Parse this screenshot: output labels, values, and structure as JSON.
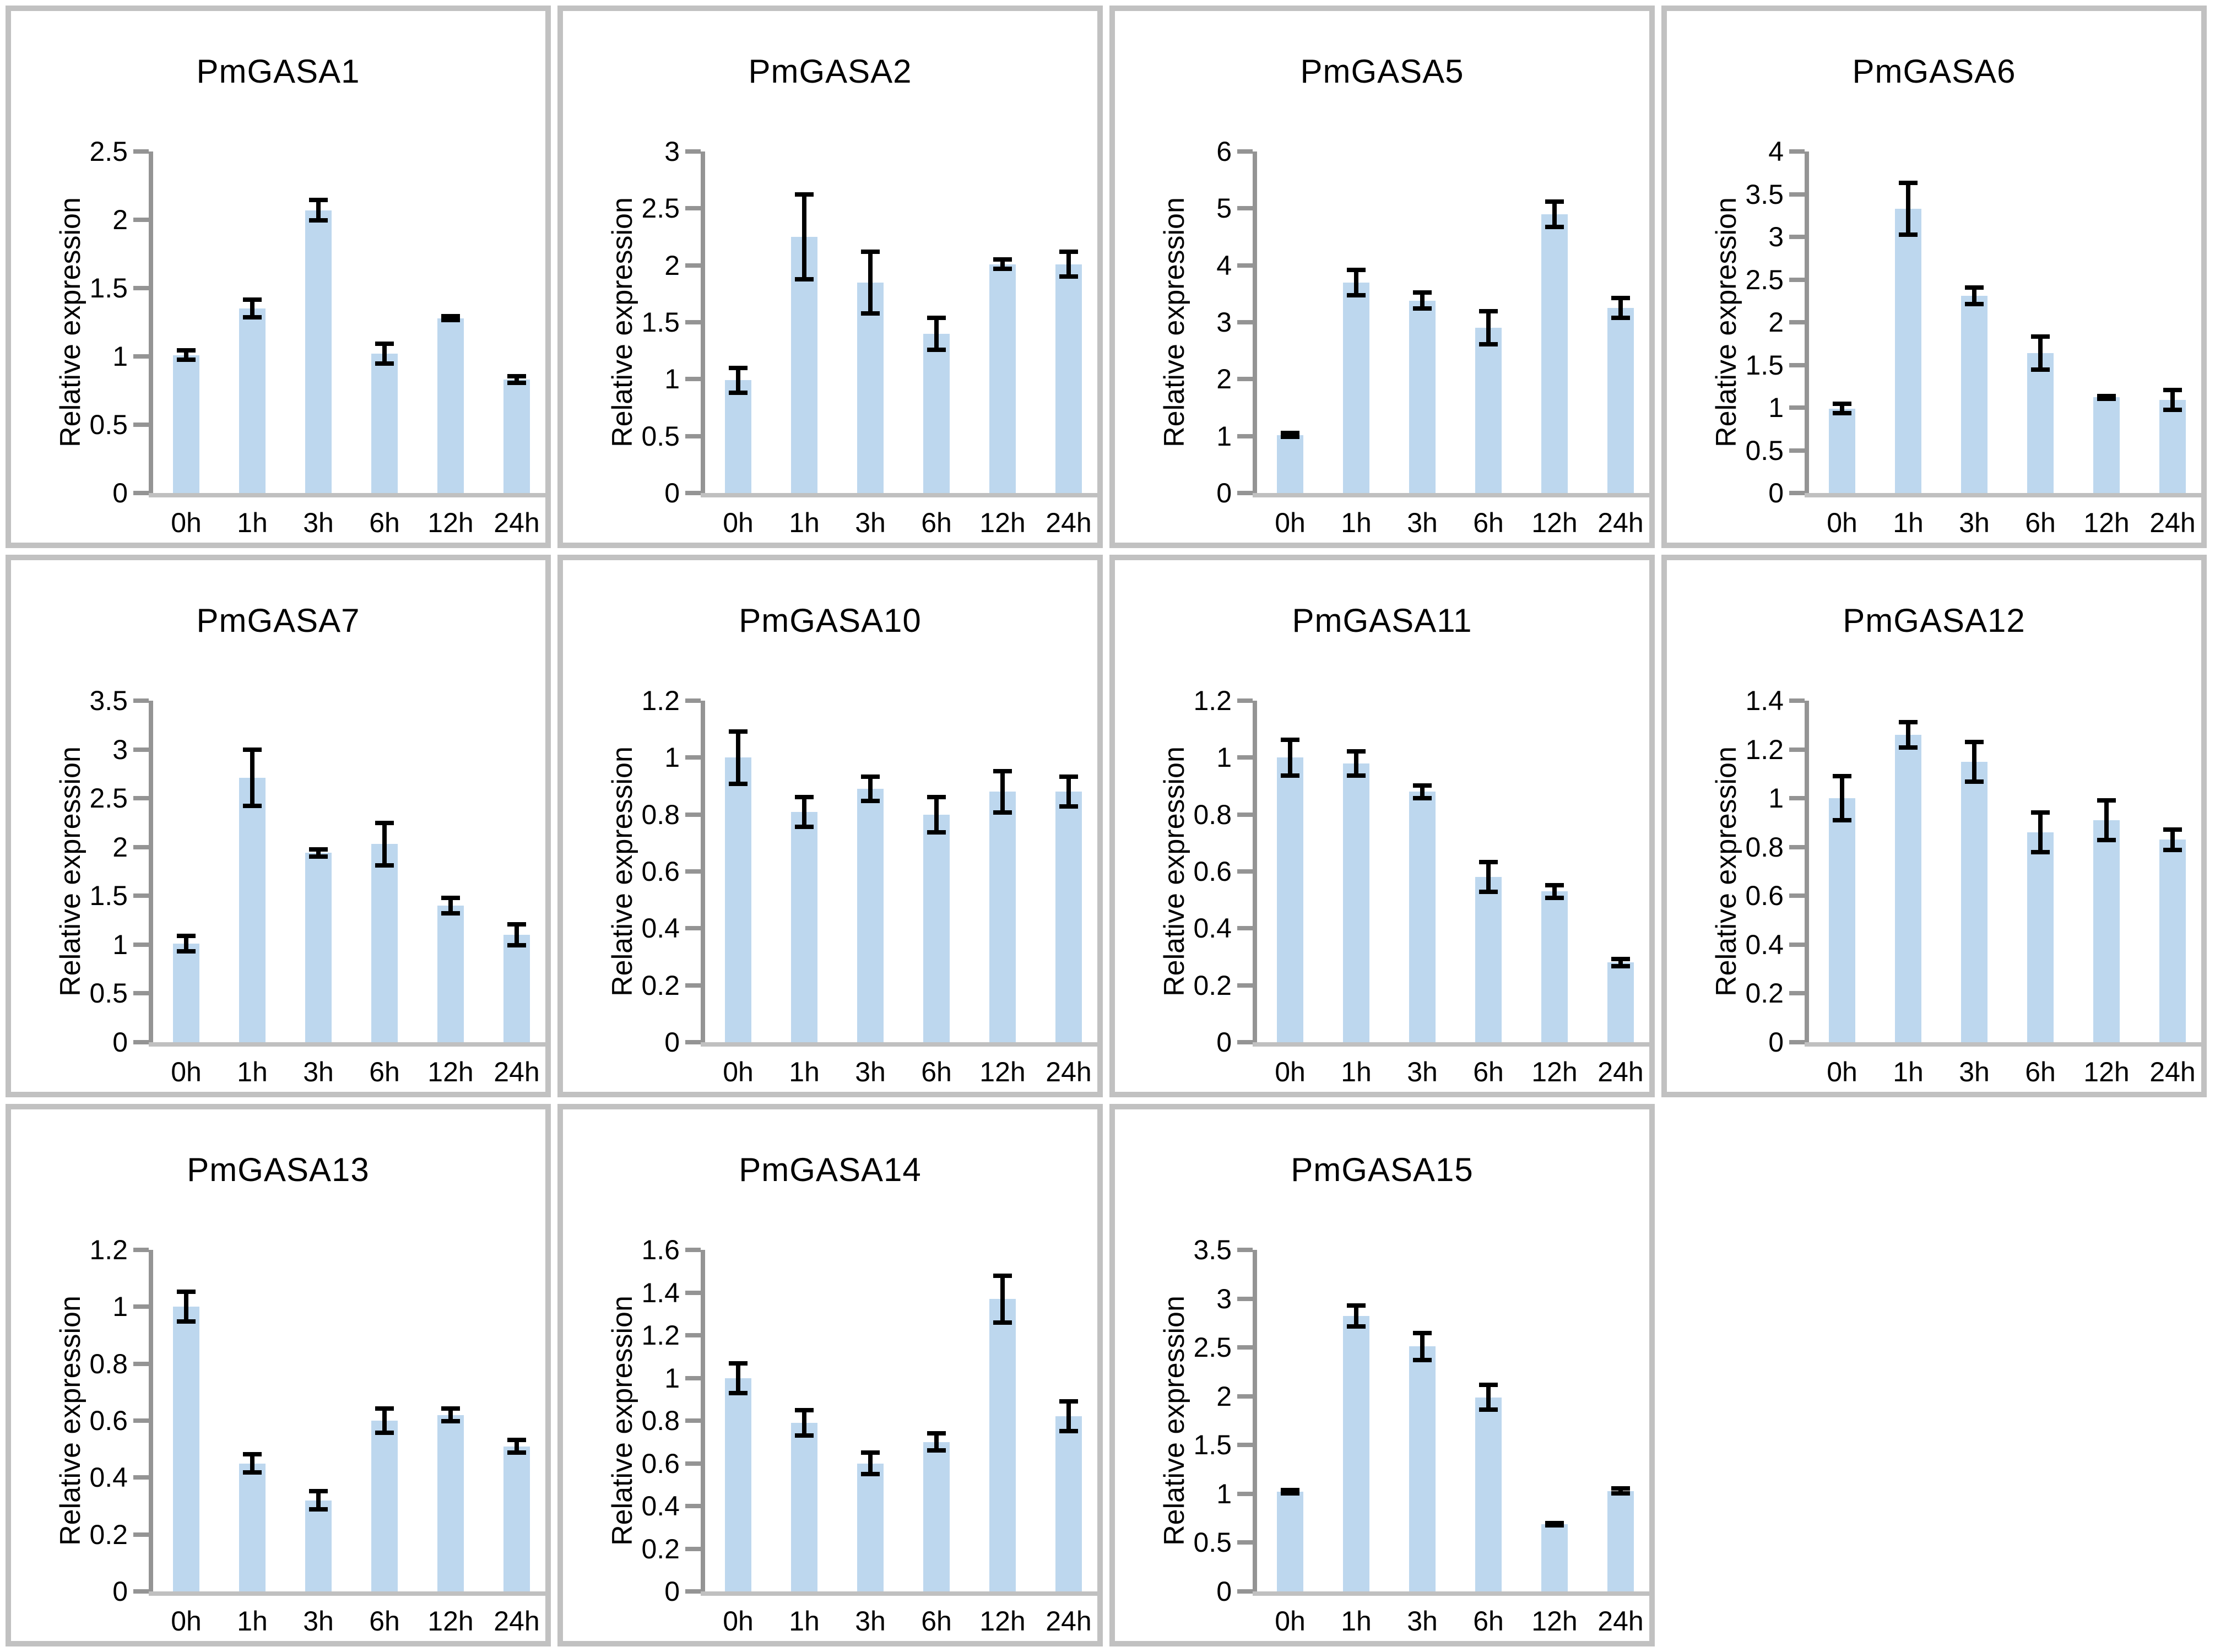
{
  "figure": {
    "ylabel": "Relative expression",
    "categories": [
      "0h",
      "1h",
      "3h",
      "6h",
      "12h",
      "24h"
    ],
    "bar_color": "#BDD7EE",
    "error_bar_color": "#000000",
    "y_axis_color": "#949494",
    "x_axis_color": "#c0c0c0",
    "panel_border_color": "#c1c1c1",
    "grid_columns": 4
  },
  "chart_data": [
    {
      "type": "bar",
      "title": "PmGASA1",
      "ylabel": "Relative expression",
      "categories": [
        "0h",
        "1h",
        "3h",
        "6h",
        "12h",
        "24h"
      ],
      "values": [
        1.01,
        1.35,
        2.07,
        1.02,
        1.28,
        0.83
      ],
      "errors": [
        0.05,
        0.08,
        0.09,
        0.09,
        0.03,
        0.04
      ],
      "ylim": [
        0,
        2.5
      ],
      "yticks": [
        0,
        0.5,
        1,
        1.5,
        2,
        2.5
      ]
    },
    {
      "type": "bar",
      "title": "PmGASA2",
      "ylabel": "Relative expression",
      "categories": [
        "0h",
        "1h",
        "3h",
        "6h",
        "12h",
        "24h"
      ],
      "values": [
        0.99,
        2.25,
        1.85,
        1.4,
        2.01,
        2.01
      ],
      "errors": [
        0.13,
        0.39,
        0.29,
        0.16,
        0.06,
        0.13
      ],
      "ylim": [
        0,
        3
      ],
      "yticks": [
        0,
        0.5,
        1,
        1.5,
        2,
        2.5,
        3
      ]
    },
    {
      "type": "bar",
      "title": "PmGASA5",
      "ylabel": "Relative expression",
      "categories": [
        "0h",
        "1h",
        "3h",
        "6h",
        "12h",
        "24h"
      ],
      "values": [
        1.02,
        3.7,
        3.38,
        2.9,
        4.9,
        3.25
      ],
      "errors": [
        0.07,
        0.26,
        0.18,
        0.33,
        0.26,
        0.21
      ],
      "ylim": [
        0,
        6
      ],
      "yticks": [
        0,
        1,
        2,
        3,
        4,
        5,
        6
      ]
    },
    {
      "type": "bar",
      "title": "PmGASA6",
      "ylabel": "Relative expression",
      "categories": [
        "0h",
        "1h",
        "3h",
        "6h",
        "12h",
        "24h"
      ],
      "values": [
        0.99,
        3.33,
        2.31,
        1.64,
        1.12,
        1.09
      ],
      "errors": [
        0.08,
        0.33,
        0.12,
        0.22,
        0.04,
        0.14
      ],
      "ylim": [
        0,
        4
      ],
      "yticks": [
        0,
        0.5,
        1,
        1.5,
        2,
        2.5,
        3,
        3.5,
        4
      ]
    },
    {
      "type": "bar",
      "title": "PmGASA7",
      "ylabel": "Relative expression",
      "categories": [
        "0h",
        "1h",
        "3h",
        "6h",
        "12h",
        "24h"
      ],
      "values": [
        1.01,
        2.71,
        1.94,
        2.03,
        1.4,
        1.1
      ],
      "errors": [
        0.1,
        0.31,
        0.06,
        0.24,
        0.1,
        0.13
      ],
      "ylim": [
        0,
        3.5
      ],
      "yticks": [
        0,
        0.5,
        1,
        1.5,
        2,
        2.5,
        3,
        3.5
      ]
    },
    {
      "type": "bar",
      "title": "PmGASA10",
      "ylabel": "Relative expression",
      "categories": [
        "0h",
        "1h",
        "3h",
        "6h",
        "12h",
        "24h"
      ],
      "values": [
        1.0,
        0.81,
        0.89,
        0.8,
        0.88,
        0.88
      ],
      "errors": [
        0.1,
        0.06,
        0.05,
        0.07,
        0.08,
        0.06
      ],
      "ylim": [
        0,
        1.2
      ],
      "yticks": [
        0,
        0.2,
        0.4,
        0.6,
        0.8,
        1,
        1.2
      ]
    },
    {
      "type": "bar",
      "title": "PmGASA11",
      "ylabel": "Relative expression",
      "categories": [
        "0h",
        "1h",
        "3h",
        "6h",
        "12h",
        "24h"
      ],
      "values": [
        1.0,
        0.98,
        0.88,
        0.58,
        0.53,
        0.28
      ],
      "errors": [
        0.07,
        0.05,
        0.03,
        0.06,
        0.03,
        0.02
      ],
      "ylim": [
        0,
        1.2
      ],
      "yticks": [
        0,
        0.2,
        0.4,
        0.6,
        0.8,
        1,
        1.2
      ]
    },
    {
      "type": "bar",
      "title": "PmGASA12",
      "ylabel": "Relative expression",
      "categories": [
        "0h",
        "1h",
        "3h",
        "6h",
        "12h",
        "24h"
      ],
      "values": [
        1.0,
        1.26,
        1.15,
        0.86,
        0.91,
        0.83
      ],
      "errors": [
        0.1,
        0.06,
        0.09,
        0.09,
        0.09,
        0.05
      ],
      "ylim": [
        0,
        1.4
      ],
      "yticks": [
        0,
        0.2,
        0.4,
        0.6,
        0.8,
        1,
        1.2,
        1.4
      ]
    },
    {
      "type": "bar",
      "title": "PmGASA13",
      "ylabel": "Relative expression",
      "categories": [
        "0h",
        "1h",
        "3h",
        "6h",
        "12h",
        "24h"
      ],
      "values": [
        1.0,
        0.45,
        0.32,
        0.6,
        0.62,
        0.51
      ],
      "errors": [
        0.06,
        0.04,
        0.04,
        0.05,
        0.03,
        0.03
      ],
      "ylim": [
        0,
        1.2
      ],
      "yticks": [
        0,
        0.2,
        0.4,
        0.6,
        0.8,
        1,
        1.2
      ]
    },
    {
      "type": "bar",
      "title": "PmGASA14",
      "ylabel": "Relative expression",
      "categories": [
        "0h",
        "1h",
        "3h",
        "6h",
        "12h",
        "24h"
      ],
      "values": [
        1.0,
        0.79,
        0.6,
        0.7,
        1.37,
        0.82
      ],
      "errors": [
        0.08,
        0.07,
        0.06,
        0.05,
        0.12,
        0.08
      ],
      "ylim": [
        0,
        1.6
      ],
      "yticks": [
        0,
        0.2,
        0.4,
        0.6,
        0.8,
        1,
        1.2,
        1.4,
        1.6
      ]
    },
    {
      "type": "bar",
      "title": "PmGASA15",
      "ylabel": "Relative expression",
      "categories": [
        "0h",
        "1h",
        "3h",
        "6h",
        "12h",
        "24h"
      ],
      "values": [
        1.02,
        2.82,
        2.51,
        1.99,
        0.69,
        1.03
      ],
      "errors": [
        0.04,
        0.13,
        0.16,
        0.15,
        0.01,
        0.05
      ],
      "ylim": [
        0,
        3.5
      ],
      "yticks": [
        0,
        0.5,
        1,
        1.5,
        2,
        2.5,
        3,
        3.5
      ]
    }
  ]
}
